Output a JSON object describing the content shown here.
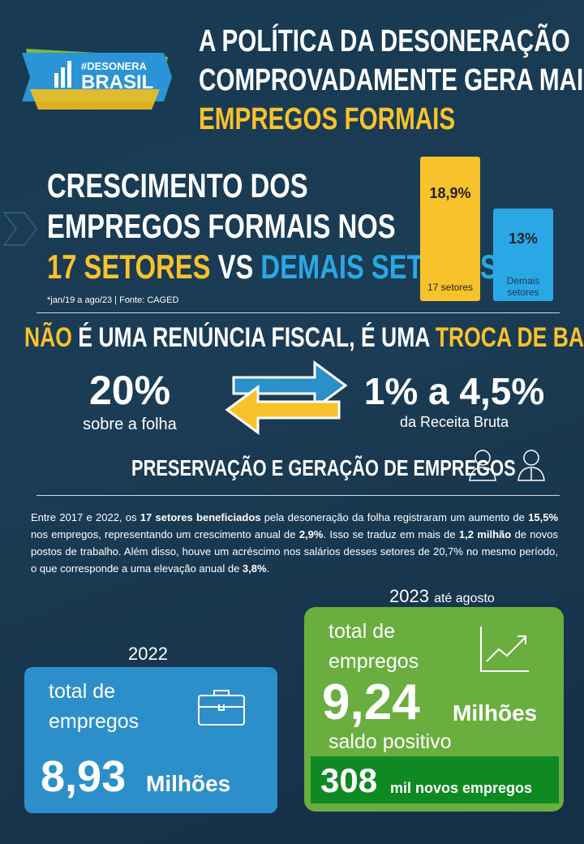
{
  "header": {
    "logo_tag": "#DESONERA",
    "logo_brand": "BRASIL",
    "title_lines": [
      "A POLÍTICA DA DESONERAÇÃO",
      "COMPROVADAMENTE GERA MAIS"
    ],
    "title_highlight": "EMPREGOS FORMAIS"
  },
  "growth": {
    "heading_lines": [
      "CRESCIMENTO DOS",
      "EMPREGOS FORMAIS NOS"
    ],
    "highlight_a": "17 SETORES",
    "vs": "VS",
    "highlight_b": "DEMAIS SETORES",
    "note": "*jan/19 a ago/23 | Fonte: CAGED",
    "bars": [
      {
        "value_label": "18,9%",
        "label": "17 setores"
      },
      {
        "value_label": "13%",
        "label": "Demais setores"
      }
    ]
  },
  "tax": {
    "heading": [
      {
        "text": "NÃO",
        "highlight": true
      },
      {
        "text": " É UMA RENÚNCIA FISCAL, É UMA ",
        "highlight": false
      },
      {
        "text": "TROCA DE BASE TRIBUTÁRIA",
        "highlight": true
      }
    ],
    "left_value": "20%",
    "left_note": "sobre a folha",
    "right_value": "1% a 4,5%",
    "right_note": "da Receita Bruta",
    "preservation": "PRESERVAÇÃO E GERAÇÃO DE EMPREGOS"
  },
  "paragraph": [
    {
      "text": "Entre 2017 e 2022, os ",
      "bold": false
    },
    {
      "text": "17 setores beneficiados",
      "bold": true
    },
    {
      "text": " pela desoneração da folha registraram um aumento de ",
      "bold": false
    },
    {
      "text": "15,5%",
      "bold": true
    },
    {
      "text": " nos empregos, representando um crescimento anual de ",
      "bold": false
    },
    {
      "text": "2,9%",
      "bold": true
    },
    {
      "text": ". Isso se traduz em mais de ",
      "bold": false
    },
    {
      "text": "1,2 milhão",
      "bold": true
    },
    {
      "text": " de novos postos de trabalho. Além disso, houve um acréscimo nos salários desses setores de 20,7% no mesmo período, o que corresponde a uma elevação anual de ",
      "bold": false
    },
    {
      "text": "3,8%",
      "bold": true
    },
    {
      "text": ".",
      "bold": false
    }
  ],
  "box_2022": {
    "year": "2022",
    "label": "total de empregos",
    "value": "8,93",
    "unit": "Milhões"
  },
  "box_2023": {
    "year": "2023",
    "year_note": "até agosto",
    "label": "total de empregos",
    "value": "9,24",
    "unit": "Milhões",
    "saldo": "saldo positivo",
    "new_value": "308",
    "new_unit": "mil novos empregos"
  }
}
